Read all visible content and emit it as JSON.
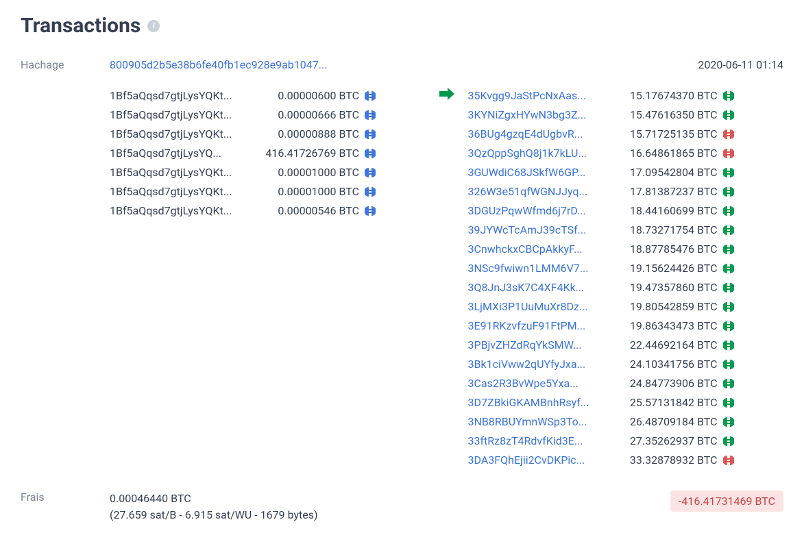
{
  "colors": {
    "link": "#3a73db",
    "text": "#353f52",
    "muted": "#7a8293",
    "globe_blue": "#3a73db",
    "globe_green": "#00994b",
    "globe_red": "#d9534f",
    "arrow": "#00994b",
    "badge_bg": "#fce4e4",
    "badge_text": "#c74343"
  },
  "header": {
    "title": "Transactions"
  },
  "labels": {
    "hash": "Hachage",
    "fee": "Frais"
  },
  "tx": {
    "hash": "800905d2b5e38b6fe40fb1ec928e9ab1047...",
    "timestamp": "2020-06-11 01:14",
    "inputs": [
      {
        "address": "1Bf5aQqsd7gtjLysYQKt...",
        "amount": "0.00000600 BTC",
        "globe": "blue"
      },
      {
        "address": "1Bf5aQqsd7gtjLysYQKt...",
        "amount": "0.00000666 BTC",
        "globe": "blue"
      },
      {
        "address": "1Bf5aQqsd7gtjLysYQKt...",
        "amount": "0.00000888 BTC",
        "globe": "blue"
      },
      {
        "address": "1Bf5aQqsd7gtjLysYQ...",
        "amount": "416.41726769 BTC",
        "globe": "blue"
      },
      {
        "address": "1Bf5aQqsd7gtjLysYQKt...",
        "amount": "0.00001000 BTC",
        "globe": "blue"
      },
      {
        "address": "1Bf5aQqsd7gtjLysYQKt...",
        "amount": "0.00001000 BTC",
        "globe": "blue"
      },
      {
        "address": "1Bf5aQqsd7gtjLysYQKt...",
        "amount": "0.00000546 BTC",
        "globe": "blue"
      }
    ],
    "outputs": [
      {
        "address": "35Kvgg9JaStPcNxAas...",
        "amount": "15.17674370 BTC",
        "globe": "green"
      },
      {
        "address": "3KYNiZgxHYwN3bg3Z...",
        "amount": "15.47616350 BTC",
        "globe": "green"
      },
      {
        "address": "36BUg4gzqE4dUgbvR...",
        "amount": "15.71725135 BTC",
        "globe": "red"
      },
      {
        "address": "3QzQppSghQ8j1k7kLU...",
        "amount": "16.64861865 BTC",
        "globe": "red"
      },
      {
        "address": "3GUWdiC68JSkfW6GP...",
        "amount": "17.09542804 BTC",
        "globe": "green"
      },
      {
        "address": "326W3e51qfWGNJJyq...",
        "amount": "17.81387237 BTC",
        "globe": "green"
      },
      {
        "address": "3DGUzPqwWfmd6j7rD...",
        "amount": "18.44160699 BTC",
        "globe": "green"
      },
      {
        "address": "39JYWcTcAmJ39cTSf...",
        "amount": "18.73271754 BTC",
        "globe": "green"
      },
      {
        "address": "3CnwhckxCBCpAkkyF...",
        "amount": "18.87785476 BTC",
        "globe": "green"
      },
      {
        "address": "3NSc9fwiwn1LMM6V7...",
        "amount": "19.15624426 BTC",
        "globe": "green"
      },
      {
        "address": "3Q8JnJ3sK7C4XF4Kk...",
        "amount": "19.47357860 BTC",
        "globe": "green"
      },
      {
        "address": "3LjMXi3P1UuMuXr8Dz...",
        "amount": "19.80542859 BTC",
        "globe": "green"
      },
      {
        "address": "3E91RKzvfzuF91FtPM...",
        "amount": "19.86343473 BTC",
        "globe": "green"
      },
      {
        "address": "3PBjvZHZdRqYkSMW...",
        "amount": "22.44692164 BTC",
        "globe": "green"
      },
      {
        "address": "3Bk1ciVww2qUYfyJxa...",
        "amount": "24.10341756 BTC",
        "globe": "green"
      },
      {
        "address": "3Cas2R3BvWpe5Yxa...",
        "amount": "24.84773906 BTC",
        "globe": "green"
      },
      {
        "address": "3D7ZBkiGKAMBnhRsyf...",
        "amount": "25.57131842 BTC",
        "globe": "green"
      },
      {
        "address": "3NB8RBUYmnWSp3To...",
        "amount": "26.48709184 BTC",
        "globe": "green"
      },
      {
        "address": "33ftRz8zT4RdvfKid3E...",
        "amount": "27.35262937 BTC",
        "globe": "green"
      },
      {
        "address": "3DA3FQhEjii2CvDKPic...",
        "amount": "33.32878932 BTC",
        "globe": "red"
      }
    ],
    "fee": {
      "amount": "0.00046440 BTC",
      "detail": "(27.659 sat/B - 6.915 sat/WU - 1679 bytes)"
    },
    "net": "-416.41731469 BTC"
  }
}
